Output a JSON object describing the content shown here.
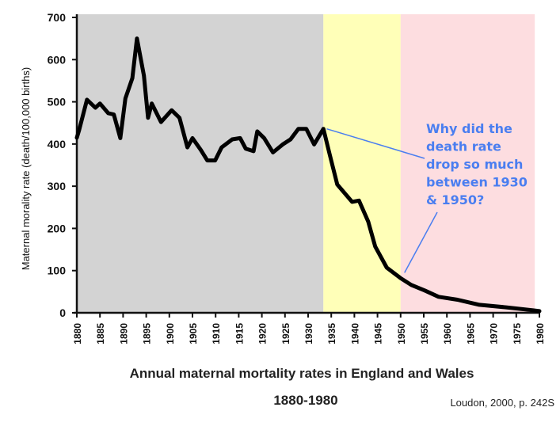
{
  "chart_data": {
    "type": "line",
    "title": "Annual maternal mortality rates in England and Wales",
    "subtitle": "1880-1980",
    "source": "Loudon, 2000, p. 242S",
    "xlabel": "",
    "ylabel": "Maternal morality rate (death/100,000 births)",
    "xlim": [
      1880,
      1980
    ],
    "ylim": [
      0,
      700
    ],
    "x_ticks": [
      "1880",
      "1885",
      "1890",
      "1895",
      "1900",
      "1905",
      "1910",
      "1915",
      "1920",
      "1925",
      "1930",
      "1935",
      "1940",
      "1945",
      "1950",
      "1955",
      "1960",
      "1965",
      "1970",
      "1975",
      "1980"
    ],
    "y_ticks": [
      "0",
      "100",
      "200",
      "300",
      "400",
      "500",
      "600",
      "700"
    ],
    "grid": false,
    "shaded_regions": [
      {
        "from": 1880,
        "to": 1933.3,
        "color": "#d3d3d3"
      },
      {
        "from": 1933.3,
        "to": 1950,
        "color": "#ffffb8"
      },
      {
        "from": 1950,
        "to": 1979,
        "color": "#fddde0"
      }
    ],
    "series": [
      {
        "color": "#000000",
        "x": [
          1880,
          1880.5,
          1882.2,
          1884,
          1885,
          1886.8,
          1888,
          1889.4,
          1890.5,
          1892,
          1893,
          1894.5,
          1895.4,
          1896.2,
          1898.2,
          1900.5,
          1902.2,
          1903.9,
          1905,
          1906.8,
          1908.2,
          1909.9,
          1911.3,
          1913.6,
          1915.3,
          1916.5,
          1918.2,
          1919,
          1920.5,
          1922.4,
          1924.5,
          1926.2,
          1927.9,
          1929.6,
          1931.3,
          1933.3,
          1934.7,
          1936.3,
          1939.5,
          1941,
          1943,
          1944.5,
          1947,
          1950,
          1952.3,
          1955.2,
          1958.2,
          1962.3,
          1967,
          1972.8,
          1978.6,
          1980
        ],
        "y": [
          415,
          433,
          505,
          486,
          496,
          473,
          470,
          414,
          508,
          556,
          650,
          562,
          462,
          496,
          452,
          480,
          462,
          392,
          414,
          386,
          361,
          361,
          392,
          411,
          414,
          389,
          383,
          430,
          414,
          380,
          399,
          411,
          436,
          436,
          399,
          436,
          374,
          304,
          263,
          266,
          216,
          157,
          107,
          82,
          66,
          53,
          38,
          31,
          19,
          13,
          6,
          4
        ]
      }
    ],
    "annotation": {
      "lines": [
        "Why did the",
        "death rate",
        "drop so much",
        "between 1930",
        "& 1950?"
      ],
      "color": "#4a7ef0",
      "points_to": [
        {
          "x": 1933.5,
          "y": 436
        },
        {
          "x": 1950.5,
          "y": 80
        }
      ]
    }
  }
}
